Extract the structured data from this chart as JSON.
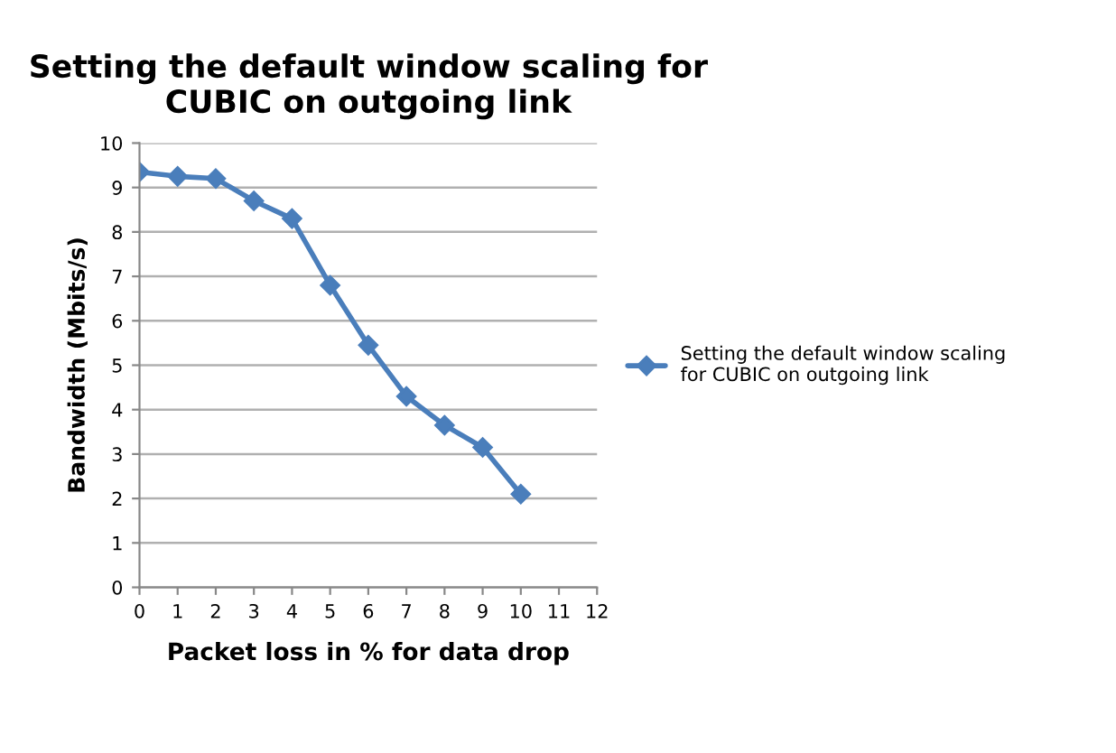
{
  "chart_data": {
    "type": "line",
    "title": "Setting the default window scaling for CUBIC on outgoing link",
    "xlabel": "Packet loss in % for data drop",
    "ylabel": "Bandwidth (Mbits/s)",
    "x": [
      0,
      1,
      2,
      3,
      4,
      5,
      6,
      7,
      8,
      9,
      10
    ],
    "series": [
      {
        "name": "Setting the default window scaling for CUBIC on outgoing link",
        "color": "#4a7ebb",
        "values": [
          9.35,
          9.25,
          9.2,
          8.7,
          8.3,
          6.8,
          5.45,
          4.3,
          3.65,
          3.15,
          2.1
        ]
      }
    ],
    "xlim": [
      0,
      12
    ],
    "xticks": [
      0,
      1,
      2,
      3,
      4,
      5,
      6,
      7,
      8,
      9,
      10,
      11,
      12
    ],
    "ylim": [
      0,
      10
    ],
    "yticks": [
      0,
      1,
      2,
      3,
      4,
      5,
      6,
      7,
      8,
      9,
      10
    ],
    "grid": "y",
    "legend": "right",
    "marker": "diamond",
    "line_style": "solid"
  }
}
